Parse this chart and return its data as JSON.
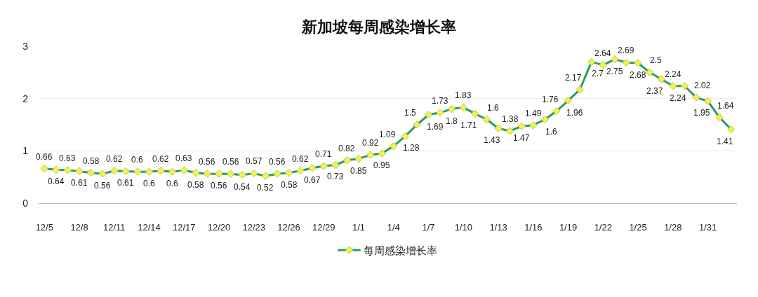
{
  "chart_data": {
    "type": "line",
    "title": "新加坡每周感染增长率",
    "categories": [
      "12/5",
      null,
      null,
      "12/8",
      null,
      null,
      "12/11",
      null,
      null,
      "12/14",
      null,
      null,
      "12/17",
      null,
      null,
      "12/20",
      null,
      null,
      "12/23",
      null,
      null,
      "12/26",
      null,
      null,
      "12/29",
      null,
      null,
      "1/1",
      null,
      null,
      "1/4",
      null,
      null,
      "1/7",
      null,
      null,
      "1/10",
      null,
      null,
      "1/13",
      null,
      null,
      "1/16",
      null,
      null,
      "1/19",
      null,
      null,
      "1/22",
      null,
      null,
      "1/25",
      null,
      null,
      "1/28",
      null,
      null,
      "1/31",
      null,
      null
    ],
    "series": [
      {
        "name": "每周感染增长率",
        "color": "#2a9d5c",
        "values": [
          0.66,
          0.64,
          0.63,
          0.61,
          0.58,
          0.56,
          0.62,
          0.61,
          0.6,
          0.6,
          0.62,
          0.6,
          0.63,
          0.58,
          0.56,
          0.56,
          0.56,
          0.54,
          0.57,
          0.52,
          0.56,
          0.58,
          0.62,
          0.67,
          0.71,
          0.73,
          0.82,
          0.85,
          0.92,
          0.95,
          1.09,
          1.28,
          1.5,
          1.69,
          1.73,
          1.8,
          1.83,
          1.71,
          1.6,
          1.43,
          1.38,
          1.47,
          1.49,
          1.6,
          1.76,
          1.96,
          2.17,
          2.7,
          2.64,
          2.75,
          2.69,
          2.68,
          2.5,
          2.37,
          2.24,
          2.24,
          2.02,
          1.95,
          1.64,
          1.41
        ]
      }
    ],
    "ylim": [
      0,
      3
    ],
    "yticks": [
      0,
      1,
      2,
      3
    ],
    "grid": "y",
    "legend": "bottom",
    "marker": "diamond",
    "line_style": "solid",
    "data_labels": true
  }
}
